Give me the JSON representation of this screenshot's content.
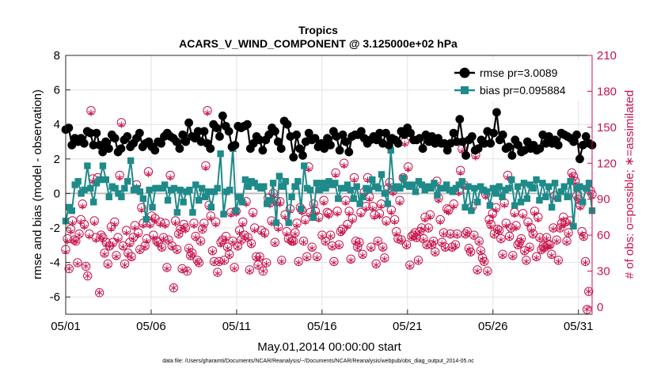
{
  "chart_data": {
    "type": "line",
    "title": "Tropics",
    "subtitle": "ACARS_V_WIND_COMPONENT @ 3.125000e+02 hPa",
    "xlabel": "May.01,2014 00:00:00 start",
    "ylabel": "rmse and bias (model - observation)",
    "y2label": "# of obs: o=possible; ∗=assimilated",
    "footnote": "data file: /Users/gharamti/Documents/NCAR/Reanalysis/~/Documents/NCAR/Reanalysis/webpub/obs_diag_output_2014-05.nc",
    "xlim": [
      1,
      31.8
    ],
    "ylim": [
      -7,
      8
    ],
    "y2lim": [
      -6,
      210
    ],
    "xticks": [
      1,
      6,
      11,
      16,
      21,
      26,
      31
    ],
    "xtick_labels": [
      "05/01",
      "05/06",
      "05/11",
      "05/16",
      "05/21",
      "05/26",
      "05/31"
    ],
    "yticks": [
      -6,
      -4,
      -2,
      0,
      2,
      4,
      6,
      8
    ],
    "ytick_labels": [
      "-6",
      "-4",
      "-2",
      "0",
      "2",
      "4",
      "6",
      "8"
    ],
    "y2ticks": [
      0,
      30,
      60,
      90,
      120,
      150,
      180,
      210
    ],
    "y2tick_labels": [
      "0",
      "30",
      "60",
      "90",
      "120",
      "150",
      "180",
      "210"
    ],
    "grid": true,
    "legend_position": "top-right",
    "series": [
      {
        "name": "rmse pr=3.0089",
        "axis": "left",
        "color": "#000000",
        "values": [
          3.7,
          3.8,
          2.8,
          3.2,
          3.0,
          3.2,
          2.9,
          3.6,
          3.5,
          2.8,
          3.5,
          2.8,
          2.4,
          3.0,
          2.6,
          3.4,
          3.2,
          2.4,
          2.6,
          3.1,
          3.3,
          2.7,
          2.9,
          3.2,
          3.5,
          2.7,
          2.9,
          3.0,
          2.7,
          2.5,
          3.0,
          2.9,
          3.3,
          3.5,
          3.3,
          3.2,
          3.0,
          2.6,
          3.4,
          3.0,
          4.1,
          3.3,
          3.2,
          3.6,
          3.0,
          3.6,
          2.9,
          2.6,
          4.0,
          3.8,
          3.3,
          4.5,
          3.9,
          3.6,
          2.7,
          2.8,
          3.9,
          3.8,
          3.9,
          4.0,
          2.6,
          2.9,
          3.3,
          3.1,
          2.5,
          3.1,
          3.4,
          3.8,
          3.6,
          3.0,
          2.6,
          4.2,
          4.0,
          3.3,
          2.1,
          3.4,
          2.6,
          2.2,
          3.0,
          3.5,
          3.1,
          3.2,
          2.7,
          2.9,
          2.6,
          3.2,
          2.8,
          3.6,
          3.3,
          2.5,
          3.4,
          3.0,
          2.4,
          3.3,
          3.4,
          3.4,
          3.6,
          3.2,
          2.9,
          3.1,
          3.3,
          3.1,
          3.5,
          2.9,
          3.5,
          2.8,
          3.2,
          3.1,
          2.9,
          3.6,
          3.4,
          3.8,
          3.5,
          3.1,
          3.1,
          3.2,
          2.6,
          3.4,
          3.0,
          3.3,
          2.9,
          3.2,
          2.9,
          2.9,
          2.5,
          2.9,
          3.5,
          3.0,
          4.3,
          3.0,
          2.2,
          3.1,
          3.3,
          2.5,
          2.6,
          3.1,
          2.9,
          3.6,
          2.9,
          3.5,
          4.7,
          3.1,
          3.4,
          2.6,
          2.7,
          2.2,
          3.1,
          2.8,
          2.4,
          2.5,
          3.0,
          2.6,
          2.8,
          2.5,
          2.6,
          3.4,
          2.9,
          3.3,
          2.9,
          3.1,
          2.8,
          3.5,
          3.4,
          3.3,
          3.2,
          3.0,
          3.4,
          2.0,
          2.8,
          3.3,
          2.9,
          2.8
        ]
      },
      {
        "name": "bias pr=0.095884",
        "axis": "left",
        "color": "#1f8a8a",
        "values": [
          -1.6,
          -0.8,
          -1.0,
          0.5,
          0.7,
          0.0,
          0.2,
          1.6,
          0.3,
          -0.5,
          0.6,
          0.8,
          1.6,
          0.8,
          -0.2,
          0.4,
          0.3,
          0.0,
          -0.2,
          0.3,
          0.7,
          1.9,
          0.2,
          0.3,
          0.1,
          -0.3,
          -1.5,
          0.2,
          -0.8,
          0.3,
          0.3,
          0.3,
          0.5,
          -0.4,
          0.2,
          0.3,
          -1.1,
          0.2,
          -0.5,
          0.1,
          0.2,
          -1.1,
          0.5,
          -0.4,
          0.3,
          -0.2,
          0.1,
          -0.8,
          0.1,
          0.3,
          2.3,
          -1.2,
          0.1,
          0.2,
          2.6,
          -1.0,
          -0.2,
          -0.5,
          0.8,
          0.4,
          0.7,
          0.6,
          0.4,
          0.3,
          0.4,
          -0.6,
          -0.4,
          0.6,
          -1.7,
          1.0,
          0.4,
          0.7,
          -1.7,
          -0.2,
          0.4,
          0.7,
          -0.9,
          1.6,
          0.3,
          0.2,
          -1.4,
          0.6,
          0.2,
          0.6,
          0.3,
          0.7,
          0.5,
          0.6,
          -0.3,
          0.3,
          0.3,
          0.5,
          0.2,
          -0.3,
          0.4,
          -0.6,
          -0.2,
          0.3,
          0.2,
          0.8,
          0.4,
          0.3,
          1.1,
          0.0,
          -0.6,
          2.5,
          0.3,
          0.4,
          0.3,
          0.9,
          0.5,
          0.4,
          0.5,
          0.1,
          0.7,
          0.5,
          0.2,
          0.4,
          0.3,
          0.6,
          -0.1,
          0.3,
          0.3,
          0.5,
          0.2,
          0.1,
          0.3,
          0.5,
          0.7,
          -0.8,
          0.4,
          -1.0,
          0.3,
          -0.5,
          0.4,
          0.2,
          0.1,
          -0.7,
          0.3,
          0.0,
          0.4,
          -0.2,
          0.2,
          0.3,
          0.8,
          -0.7,
          0.4,
          -0.5,
          0.6,
          -0.3,
          0.5,
          0.3,
          0.8,
          -0.4,
          0.6,
          -0.2,
          0.4,
          -0.8,
          0.6,
          -0.3,
          0.1,
          0.4,
          -0.2,
          0.7,
          -1.9,
          0.3,
          0.4,
          -0.5,
          0.3,
          0.6,
          -1.0
        ]
      },
      {
        "name": "possible",
        "axis": "right",
        "color": "#c8144b",
        "marker": "circle",
        "values": [
          48,
          57,
          32,
          65,
          72,
          56,
          55,
          37,
          61,
          73,
          86,
          69,
          34,
          26,
          61,
          164,
          107,
          72,
          58,
          108,
          12,
          60,
          58,
          45,
          54,
          36,
          51,
          67,
          54,
          71,
          43,
          58,
          110,
          154,
          51,
          36,
          64,
          45,
          54,
          42,
          58,
          68,
          102,
          62,
          48,
          83,
          70,
          51,
          57,
          113,
          70,
          76,
          60,
          74,
          55,
          54,
          71,
          50,
          58,
          70,
          33,
          56,
          110,
          51,
          16,
          72,
          48,
          61,
          65,
          32,
          69,
          66,
          30,
          49,
          43,
          45,
          70,
          59,
          39,
          37,
          55,
          65,
          70,
          118,
          164,
          85,
          76,
          47,
          38,
          71,
          29,
          38,
          54,
          56,
          39,
          59,
          50,
          44,
          79,
          55,
          33,
          80,
          51,
          64,
          56,
          71,
          60,
          88,
          58,
          31,
          53,
          79,
          66,
          42,
          35,
          42,
          64,
          30,
          62,
          37,
          91,
          87,
          72,
          95,
          54,
          88,
          67,
          88,
          39,
          104,
          77,
          63,
          57,
          82,
          55,
          55,
          62,
          70,
          38,
          83,
          81,
          55,
          73,
          42,
          117,
          79,
          50,
          86,
          80,
          42,
          75,
          100,
          60,
          89,
          55,
          79,
          78,
          60,
          51,
          38,
          112,
          80,
          52,
          63,
          65,
          120,
          89,
          69,
          80,
          40,
          74,
          108,
          55,
          50,
          54,
          79,
          44,
          96,
          84,
          108,
          92,
          50,
          84,
          77,
          36,
          55,
          78,
          86,
          50,
          41,
          72,
          99,
          104,
          81,
          97,
          73,
          63,
          57,
          89,
          56,
          108,
          138,
          52,
          117,
          35,
          59,
          60,
          62,
          58,
          39,
          63,
          66,
          57,
          75,
          52,
          66,
          77,
          52,
          55,
          46,
          105,
          91,
          73,
          54,
          62,
          50,
          82,
          81,
          61,
          50,
          86,
          52,
          61,
          97,
          114,
          132,
          102,
          61,
          63,
          49,
          46,
          84,
          60,
          127,
          31,
          55,
          47,
          41,
          38,
          94,
          30,
          73,
          69,
          78,
          61,
          83,
          65,
          64,
          57,
          44,
          87,
          70,
          110,
          59,
          66,
          43,
          79,
          68,
          52,
          54,
          57,
          78,
          47,
          39,
          71,
          50,
          66,
          61,
          80,
          42,
          75,
          58,
          48,
          51,
          50,
          58,
          52,
          52,
          44,
          66,
          93,
          56,
          39,
          66,
          70,
          75,
          71,
          55,
          62,
          72,
          112,
          109,
          105,
          93,
          90,
          85,
          63,
          59,
          38,
          -2,
          13,
          97,
          94
        ]
      },
      {
        "name": "assimilated",
        "axis": "right",
        "color": "#c8144b",
        "marker": "asterisk",
        "values": [
          46,
          55,
          32,
          63,
          70,
          55,
          55,
          36,
          60,
          71,
          84,
          67,
          34,
          26,
          59,
          162,
          105,
          70,
          56,
          106,
          12,
          59,
          56,
          44,
          52,
          35,
          50,
          65,
          52,
          69,
          42,
          56,
          108,
          152,
          50,
          35,
          62,
          44,
          52,
          41,
          57,
          66,
          100,
          60,
          47,
          81,
          68,
          50,
          55,
          111,
          68,
          74,
          58,
          72,
          54,
          52,
          69,
          49,
          57,
          68,
          32,
          55,
          108,
          50,
          16,
          70,
          47,
          60,
          64,
          31,
          67,
          64,
          30,
          48,
          42,
          44,
          68,
          58,
          38,
          36,
          54,
          64,
          68,
          116,
          162,
          83,
          74,
          46,
          37,
          69,
          28,
          37,
          52,
          55,
          38,
          57,
          49,
          43,
          77,
          54,
          32,
          78,
          50,
          62,
          55,
          69,
          59,
          86,
          57,
          30,
          52,
          77,
          64,
          41,
          34,
          41,
          62,
          30,
          60,
          36,
          89,
          85,
          70,
          93,
          53,
          86,
          65,
          86,
          38,
          102,
          75,
          61,
          56,
          80,
          54,
          54,
          61,
          68,
          37,
          81,
          79,
          54,
          71,
          41,
          115,
          77,
          49,
          84,
          78,
          41,
          73,
          98,
          59,
          87,
          54,
          77,
          76,
          59,
          50,
          37,
          110,
          78,
          51,
          62,
          63,
          118,
          87,
          67,
          78,
          39,
          72,
          106,
          54,
          49,
          53,
          77,
          43,
          94,
          82,
          106,
          90,
          49,
          82,
          75,
          35,
          54,
          76,
          84,
          49,
          40,
          70,
          97,
          102,
          79,
          95,
          71,
          61,
          56,
          87,
          55,
          106,
          136,
          51,
          115,
          34,
          58,
          59,
          61,
          57,
          38,
          62,
          65,
          56,
          73,
          51,
          65,
          75,
          51,
          54,
          45,
          103,
          89,
          71,
          53,
          61,
          49,
          80,
          79,
          60,
          49,
          84,
          51,
          60,
          95,
          112,
          130,
          100,
          60,
          62,
          48,
          45,
          82,
          59,
          125,
          30,
          54,
          46,
          40,
          37,
          92,
          29,
          71,
          67,
          76,
          60,
          81,
          64,
          63,
          56,
          43,
          85,
          68,
          108,
          58,
          65,
          42,
          77,
          66,
          51,
          53,
          56,
          76,
          46,
          38,
          69,
          49,
          64,
          60,
          78,
          41,
          73,
          57,
          47,
          50,
          49,
          57,
          51,
          51,
          43,
          65,
          91,
          55,
          38,
          65,
          68,
          73,
          69,
          54,
          61,
          70,
          110,
          107,
          103,
          91,
          88,
          83,
          61,
          58,
          37,
          -2,
          13,
          95,
          92
        ]
      }
    ]
  }
}
